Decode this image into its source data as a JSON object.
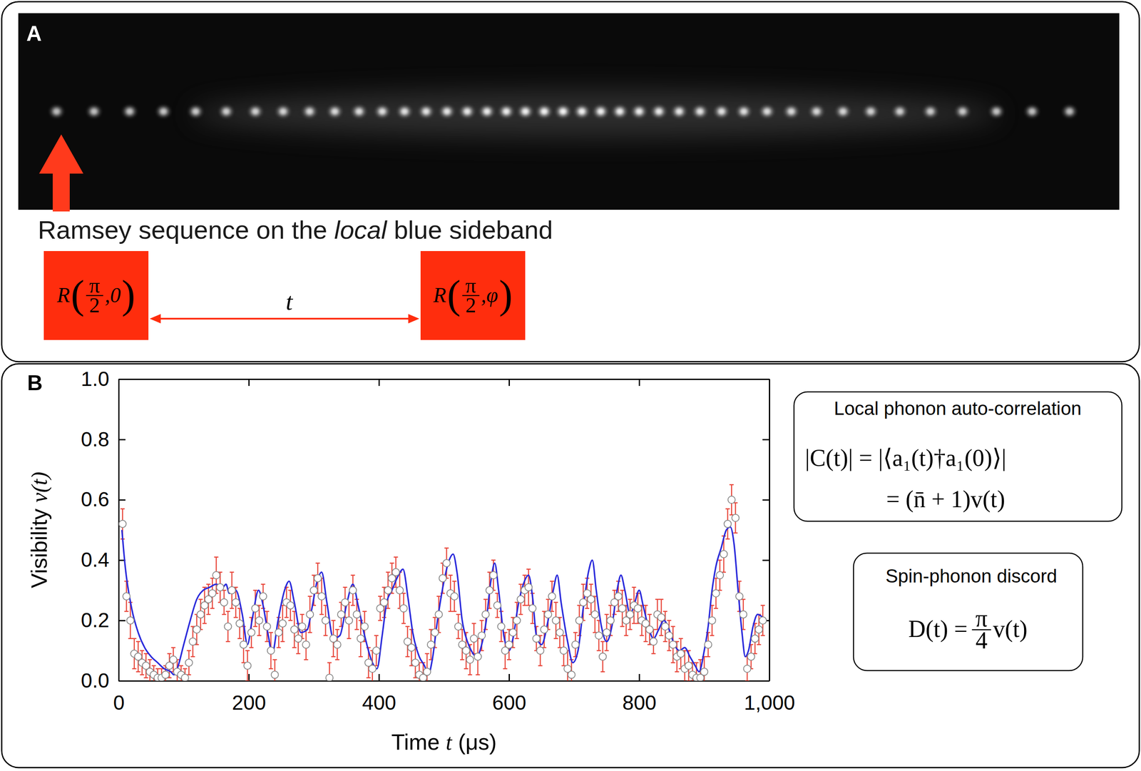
{
  "panel_a": {
    "label": "A",
    "caption": {
      "before": "Ramsey sequence on the ",
      "emphasis": "local",
      "after": " blue sideband"
    },
    "pulses": [
      {
        "symbol": "R",
        "open": "(",
        "numerator": "π",
        "denominator": "2",
        "args": ",0",
        "close": ")"
      },
      {
        "symbol": "R",
        "open": "(",
        "numerator": "π",
        "denominator": "2",
        "args": ",φ",
        "close": ")"
      }
    ],
    "delay": "t"
  },
  "panel_b": {
    "label": "B",
    "boxes": [
      {
        "title": "Local phonon auto-correlation",
        "lines": [
          "|C(t)| = |⟨a₁(t)†a₁(0)⟩|",
          "= (n̄ + 1)v(t)"
        ]
      },
      {
        "title": "Spin-phonon discord",
        "formula": {
          "lhs": "D(t) =",
          "numerator": "π",
          "denominator": "4",
          "rhs": "v(t)"
        }
      }
    ]
  },
  "chart_data": {
    "type": "scatter",
    "x_label": {
      "before": "Time ",
      "math": "t",
      "after": " (μs)"
    },
    "y_label": {
      "text": "Visibility ",
      "math": "v(t)"
    },
    "xlim": [
      0,
      1000
    ],
    "ylim": [
      0,
      1
    ],
    "xticks": [
      0,
      200,
      400,
      600,
      800,
      {
        "value": 1000,
        "label": "1,000"
      }
    ],
    "yticks": [
      {
        "value": 0,
        "label": "0.0"
      },
      {
        "value": 0.2,
        "label": "0.2"
      },
      {
        "value": 0.4,
        "label": "0.4"
      },
      {
        "value": 0.6,
        "label": "0.6"
      },
      {
        "value": 0.8,
        "label": "0.8"
      },
      {
        "value": 1,
        "label": "1.0"
      }
    ],
    "grid": false,
    "series": [
      {
        "type": "scatter",
        "marker": "o",
        "color": "#8a8a8a",
        "x": [
          6,
          12,
          18,
          24,
          30,
          36,
          42,
          48,
          54,
          60,
          66,
          72,
          78,
          84,
          90,
          96,
          102,
          108,
          114,
          120,
          126,
          132,
          138,
          144,
          150,
          156,
          162,
          168,
          174,
          180,
          186,
          192,
          198,
          204,
          210,
          216,
          222,
          228,
          234,
          240,
          246,
          252,
          258,
          264,
          270,
          276,
          282,
          288,
          294,
          300,
          306,
          312,
          318,
          324,
          330,
          336,
          342,
          348,
          354,
          360,
          366,
          372,
          378,
          384,
          390,
          396,
          402,
          408,
          414,
          420,
          426,
          432,
          438,
          444,
          450,
          456,
          462,
          468,
          474,
          480,
          486,
          492,
          498,
          504,
          510,
          516,
          522,
          528,
          534,
          540,
          546,
          552,
          558,
          564,
          570,
          576,
          582,
          588,
          594,
          600,
          606,
          612,
          618,
          624,
          630,
          636,
          642,
          648,
          654,
          660,
          666,
          672,
          678,
          684,
          690,
          696,
          702,
          708,
          714,
          720,
          726,
          732,
          738,
          744,
          750,
          756,
          762,
          768,
          774,
          780,
          786,
          792,
          798,
          804,
          810,
          816,
          822,
          828,
          834,
          840,
          846,
          852,
          858,
          864,
          870,
          876,
          882,
          888,
          894,
          900,
          906,
          912,
          918,
          924,
          930,
          936,
          942,
          948,
          954,
          960,
          966,
          972,
          978,
          984,
          990
        ],
        "values": [
          0.52,
          0.28,
          0.2,
          0.09,
          0.08,
          0.06,
          0.05,
          0.03,
          0.02,
          0.01,
          0.01,
          0.02,
          0.05,
          0.07,
          0.03,
          0.02,
          0.01,
          0.06,
          0.13,
          0.17,
          0.22,
          0.25,
          0.27,
          0.29,
          0.35,
          0.31,
          0.26,
          0.18,
          0.3,
          0.26,
          0.19,
          0.12,
          0.05,
          0.16,
          0.24,
          0.2,
          0.28,
          0.18,
          0.1,
          0.02,
          0.16,
          0.19,
          0.26,
          0.25,
          0.17,
          0.14,
          0.18,
          0.12,
          0.22,
          0.3,
          0.34,
          0.28,
          0.2,
          0.01,
          0.14,
          0.12,
          0.22,
          0.26,
          0.2,
          0.3,
          0.22,
          0.14,
          0.18,
          0.06,
          0.04,
          0.1,
          0.24,
          0.26,
          0.3,
          0.34,
          0.36,
          0.3,
          0.24,
          0.13,
          0.11,
          0.06,
          0.02,
          0.01,
          0.03,
          0.12,
          0.16,
          0.22,
          0.34,
          0.39,
          0.29,
          0.28,
          0.18,
          0.12,
          0.1,
          0.07,
          0.14,
          0.08,
          0.15,
          0.22,
          0.3,
          0.35,
          0.25,
          0.18,
          0.1,
          0.12,
          0.16,
          0.2,
          0.27,
          0.3,
          0.31,
          0.24,
          0.14,
          0.1,
          0.17,
          0.22,
          0.28,
          0.2,
          0.16,
          0.1,
          0.04,
          0.02,
          0.12,
          0.2,
          0.26,
          0.29,
          0.27,
          0.22,
          0.15,
          0.08,
          0.16,
          0.2,
          0.26,
          0.28,
          0.24,
          0.2,
          0.22,
          0.25,
          0.24,
          0.2,
          0.19,
          0.17,
          0.13,
          0.22,
          0.21,
          0.18,
          0.15,
          0.12,
          0.08,
          0.09,
          0.04,
          0.05,
          0.02,
          0.01,
          0.01,
          0.03,
          0.12,
          0.2,
          0.29,
          0.35,
          0.42,
          0.52,
          0.6,
          0.54,
          0.28,
          0.22,
          0.04,
          0.08,
          0.14,
          0.17,
          0.2
        ],
        "errors": [
          0.05,
          0.05,
          0.06,
          0.05,
          0.05,
          0.04,
          0.04,
          0.04,
          0.03,
          0.03,
          0.03,
          0.03,
          0.04,
          0.04,
          0.04,
          0.03,
          0.03,
          0.04,
          0.05,
          0.05,
          0.05,
          0.06,
          0.05,
          0.05,
          0.06,
          0.05,
          0.04,
          0.05,
          0.06,
          0.05,
          0.05,
          0.06,
          0.05,
          0.05,
          0.06,
          0.05,
          0.04,
          0.05,
          0.06,
          0.05,
          0.05,
          0.06,
          0.05,
          0.05,
          0.06,
          0.05,
          0.04,
          0.05,
          0.06,
          0.05,
          0.05,
          0.06,
          0.05,
          0.05,
          0.06,
          0.05,
          0.04,
          0.05,
          0.06,
          0.05,
          0.05,
          0.06,
          0.05,
          0.05,
          0.06,
          0.05,
          0.04,
          0.05,
          0.06,
          0.05,
          0.05,
          0.06,
          0.05,
          0.05,
          0.06,
          0.05,
          0.04,
          0.05,
          0.06,
          0.05,
          0.05,
          0.06,
          0.05,
          0.05,
          0.06,
          0.05,
          0.04,
          0.05,
          0.06,
          0.05,
          0.05,
          0.06,
          0.05,
          0.05,
          0.06,
          0.05,
          0.04,
          0.05,
          0.06,
          0.05,
          0.05,
          0.06,
          0.05,
          0.05,
          0.06,
          0.05,
          0.04,
          0.05,
          0.06,
          0.05,
          0.05,
          0.06,
          0.05,
          0.05,
          0.06,
          0.05,
          0.04,
          0.05,
          0.06,
          0.05,
          0.05,
          0.06,
          0.05,
          0.05,
          0.06,
          0.05,
          0.04,
          0.05,
          0.06,
          0.05,
          0.05,
          0.06,
          0.05,
          0.05,
          0.06,
          0.05,
          0.04,
          0.05,
          0.06,
          0.05,
          0.05,
          0.06,
          0.05,
          0.05,
          0.06,
          0.05,
          0.04,
          0.05,
          0.06,
          0.05,
          0.04,
          0.05,
          0.05,
          0.05,
          0.06,
          0.05,
          0.05,
          0.05,
          0.05,
          0.05,
          0.04,
          0.04,
          0.05,
          0.05,
          0.05
        ]
      },
      {
        "type": "line",
        "color": "#2b2bdb",
        "line_style": "solid",
        "x": [
          5,
          10,
          20,
          30,
          40,
          50,
          60,
          70,
          80,
          85,
          90,
          100,
          110,
          120,
          130,
          140,
          150,
          160,
          165,
          170,
          180,
          190,
          198,
          205,
          215,
          222,
          230,
          236,
          245,
          255,
          262,
          270,
          280,
          290,
          297,
          305,
          312,
          320,
          330,
          340,
          350,
          360,
          368,
          378,
          390,
          397,
          405,
          412,
          420,
          430,
          437,
          445,
          452,
          462,
          470,
          476,
          482,
          490,
          500,
          508,
          514,
          520,
          528,
          536,
          542,
          550,
          558,
          565,
          572,
          578,
          584,
          592,
          600,
          606,
          614,
          622,
          630,
          636,
          642,
          650,
          660,
          668,
          674,
          680,
          690,
          698,
          706,
          714,
          722,
          728,
          734,
          742,
          750,
          758,
          766,
          772,
          778,
          786,
          792,
          800,
          806,
          814,
          822,
          830,
          838,
          846,
          854,
          862,
          870,
          878,
          886,
          892,
          900,
          906,
          912,
          918,
          926,
          934,
          940,
          946,
          952,
          958,
          963,
          968,
          975,
          982,
          990
        ],
        "values": [
          0.5,
          0.38,
          0.24,
          0.16,
          0.11,
          0.08,
          0.06,
          0.04,
          0.03,
          0.02,
          0.04,
          0.12,
          0.2,
          0.27,
          0.3,
          0.31,
          0.32,
          0.31,
          0.32,
          0.29,
          0.3,
          0.22,
          0.12,
          0.2,
          0.3,
          0.25,
          0.15,
          0.09,
          0.2,
          0.3,
          0.33,
          0.26,
          0.16,
          0.17,
          0.24,
          0.33,
          0.36,
          0.26,
          0.14,
          0.15,
          0.25,
          0.32,
          0.25,
          0.15,
          0.06,
          0.04,
          0.15,
          0.26,
          0.3,
          0.35,
          0.37,
          0.27,
          0.16,
          0.08,
          0.05,
          0.02,
          0.07,
          0.2,
          0.33,
          0.4,
          0.42,
          0.36,
          0.2,
          0.13,
          0.1,
          0.08,
          0.12,
          0.2,
          0.33,
          0.39,
          0.3,
          0.15,
          0.1,
          0.14,
          0.25,
          0.32,
          0.35,
          0.28,
          0.15,
          0.12,
          0.2,
          0.3,
          0.35,
          0.26,
          0.13,
          0.06,
          0.1,
          0.24,
          0.36,
          0.4,
          0.3,
          0.18,
          0.13,
          0.18,
          0.3,
          0.35,
          0.3,
          0.22,
          0.25,
          0.3,
          0.25,
          0.18,
          0.14,
          0.17,
          0.2,
          0.17,
          0.12,
          0.1,
          0.11,
          0.08,
          0.05,
          0.03,
          0.1,
          0.18,
          0.3,
          0.38,
          0.44,
          0.5,
          0.51,
          0.45,
          0.3,
          0.16,
          0.08,
          0.1,
          0.18,
          0.22,
          0.21
        ]
      }
    ]
  }
}
